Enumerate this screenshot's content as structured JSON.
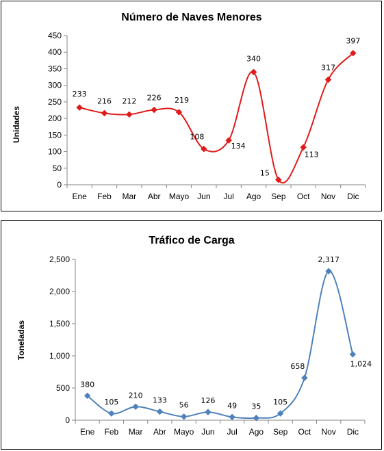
{
  "chart_data": [
    {
      "type": "line",
      "title": "Número de Naves Menores",
      "xlabel": "",
      "ylabel": "Unidades",
      "categories": [
        "Ene",
        "Feb",
        "Mar",
        "Abr",
        "Mayo",
        "Jun",
        "Jul",
        "Ago",
        "Sep",
        "Oct",
        "Nov",
        "Dic"
      ],
      "series": [
        {
          "values": [
            233,
            216,
            212,
            226,
            219,
            108,
            134,
            340,
            15,
            113,
            317,
            397
          ],
          "labels": [
            "233",
            "216",
            "212",
            "226",
            "219",
            "108",
            "134",
            "340",
            "15",
            "113",
            "317",
            "397"
          ]
        }
      ],
      "ylim": [
        0,
        450
      ],
      "yticks": [
        0,
        50,
        100,
        150,
        200,
        250,
        300,
        350,
        400,
        450
      ],
      "ytick_labels": [
        "0",
        "50",
        "100",
        "150",
        "200",
        "250",
        "300",
        "350",
        "400",
        "450"
      ],
      "color": "#e01b1b",
      "marker": "diamond",
      "smooth": true,
      "grid": false,
      "legend": "none"
    },
    {
      "type": "line",
      "title": "Tráfico de Carga",
      "xlabel": "",
      "ylabel": "Toneladas",
      "categories": [
        "Ene",
        "Feb",
        "Mar",
        "Abr",
        "Mayo",
        "Jun",
        "Jul",
        "Ago",
        "Sep",
        "Oct",
        "Nov",
        "Dic"
      ],
      "series": [
        {
          "values": [
            380,
            105,
            210,
            133,
            56,
            126,
            49,
            35,
            105,
            658,
            2317,
            1024
          ],
          "labels": [
            "380",
            "105",
            "210",
            "133",
            "56",
            "126",
            "49",
            "35",
            "105",
            "658",
            "2,317",
            "1,024"
          ]
        }
      ],
      "ylim": [
        0,
        2500
      ],
      "yticks": [
        0,
        500,
        1000,
        1500,
        2000,
        2500
      ],
      "ytick_labels": [
        "0",
        "500",
        "1,000",
        "1,500",
        "2,000",
        "2,500"
      ],
      "color": "#4f81bd",
      "marker": "diamond",
      "smooth": true,
      "grid": false,
      "legend": "none"
    }
  ]
}
